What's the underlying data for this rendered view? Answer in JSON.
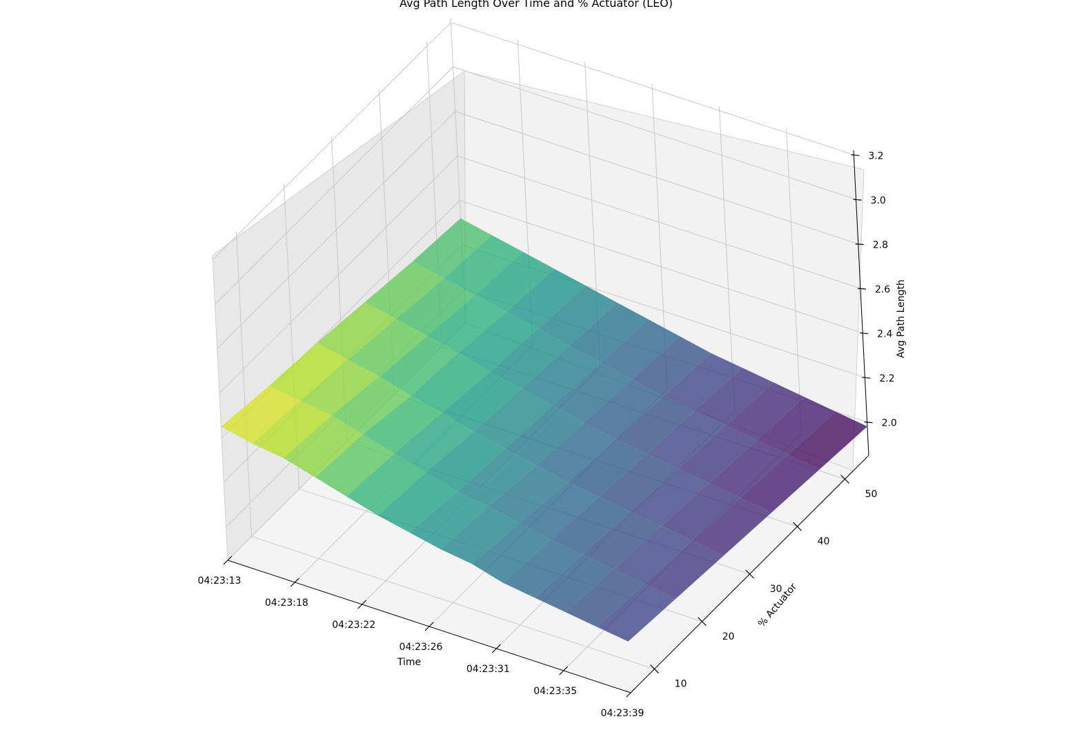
{
  "chart_data": {
    "type": "surface3d",
    "title": "Avg Path Length Over Time and % Actuator (LEO)",
    "xlabel": "Time",
    "ylabel": "% Actuator",
    "zlabel": "Avg Path Length",
    "x_ticks": [
      "04:23:13",
      "04:23:18",
      "04:23:22",
      "04:23:26",
      "04:23:31",
      "04:23:35",
      "04:23:39"
    ],
    "y_ticks": [
      "10",
      "20",
      "30",
      "40",
      "50"
    ],
    "z_ticks": [
      "2.0",
      "2.2",
      "2.4",
      "2.6",
      "2.8",
      "3.0",
      "3.2"
    ],
    "x_range_seconds": [
      0,
      26
    ],
    "y_range": [
      5,
      55
    ],
    "z_range": [
      1.85,
      3.22
    ],
    "colormap": "viridis",
    "surface": {
      "t": [
        0,
        2,
        4,
        6,
        8,
        10,
        12,
        14,
        16,
        18,
        20,
        22,
        24,
        26
      ],
      "actuator": [
        5,
        15,
        25,
        35,
        45,
        55
      ],
      "avg_path_length": [
        [
          2.45,
          2.42,
          2.4,
          2.36,
          2.32,
          2.28,
          2.25,
          2.22,
          2.2,
          2.16,
          2.14,
          2.12,
          2.1,
          2.08
        ],
        [
          2.42,
          2.4,
          2.38,
          2.34,
          2.3,
          2.26,
          2.22,
          2.2,
          2.17,
          2.14,
          2.12,
          2.1,
          2.08,
          2.06
        ],
        [
          2.4,
          2.37,
          2.34,
          2.3,
          2.27,
          2.23,
          2.2,
          2.17,
          2.14,
          2.12,
          2.1,
          2.08,
          2.06,
          2.04
        ],
        [
          2.37,
          2.34,
          2.31,
          2.28,
          2.24,
          2.21,
          2.18,
          2.15,
          2.12,
          2.1,
          2.08,
          2.06,
          2.04,
          2.02
        ],
        [
          2.34,
          2.31,
          2.28,
          2.25,
          2.22,
          2.19,
          2.16,
          2.13,
          2.1,
          2.08,
          2.06,
          2.04,
          2.02,
          2.0
        ],
        [
          2.32,
          2.29,
          2.26,
          2.23,
          2.2,
          2.17,
          2.14,
          2.11,
          2.08,
          2.06,
          2.04,
          2.02,
          2.0,
          1.98
        ]
      ]
    },
    "grid": true
  }
}
